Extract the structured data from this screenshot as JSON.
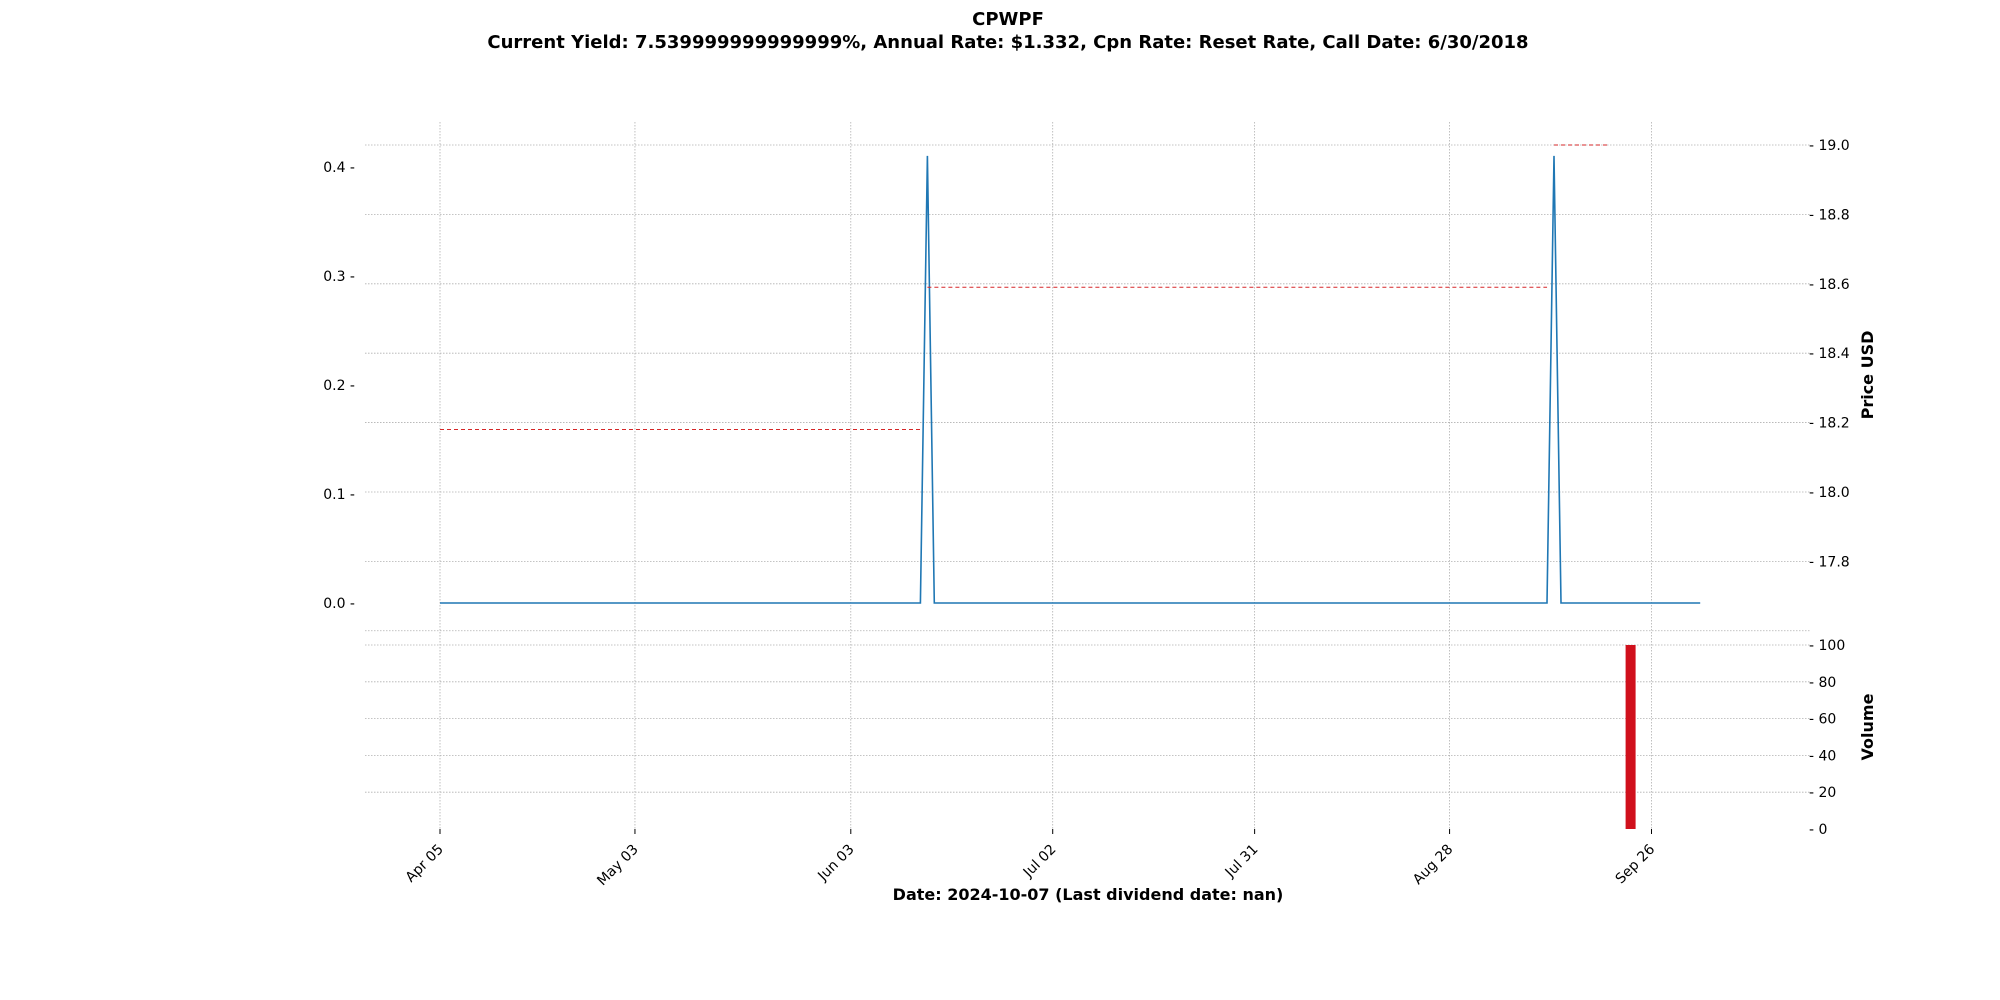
{
  "chart_data": {
    "type": "line",
    "title": "CPWPF",
    "subtitle": "Current Yield: 7.539999999999999%, Annual Rate: $1.332, Cpn Rate: Reset Rate, Call Date: 6/30/2018",
    "xlabel": "Date: 2024-10-07   (Last dividend date: nan)",
    "x_ticks": [
      "Apr 05",
      "May 03",
      "Jun 03",
      "Jul 02",
      "Jul 31",
      "Aug 28",
      "Sep 26"
    ],
    "xlim": [
      "2024-04-05",
      "2024-10-09"
    ],
    "grid": true,
    "left_axis": {
      "label": "",
      "ylim": [
        0,
        0.42
      ],
      "ticks": [
        "0.0",
        "0.1",
        "0.2",
        "0.3",
        "0.4"
      ]
    },
    "right_axis": {
      "label": "Price USD",
      "ylim": [
        17.68,
        19.0
      ],
      "ticks": [
        "17.8",
        "18.0",
        "18.2",
        "18.4",
        "18.6",
        "18.8",
        "19.0"
      ]
    },
    "volume_axis": {
      "label": "Volume",
      "ylim": [
        0,
        100
      ],
      "ticks": [
        "0",
        "20",
        "40",
        "60",
        "80",
        "100"
      ]
    },
    "series": [
      {
        "axis": "left",
        "color": "#1f77b4",
        "style": "solid",
        "points": [
          [
            "2024-04-05",
            0
          ],
          [
            "2024-06-13",
            0
          ],
          [
            "2024-06-14",
            0.41
          ],
          [
            "2024-06-15",
            0
          ],
          [
            "2024-09-11",
            0
          ],
          [
            "2024-09-12",
            0.41
          ],
          [
            "2024-09-13",
            0
          ],
          [
            "2024-10-03",
            0
          ]
        ]
      },
      {
        "axis": "right",
        "color": "#d62728",
        "style": "dashed",
        "segments": [
          {
            "x": [
              "2024-04-05",
              "2024-06-13"
            ],
            "y": 18.18
          },
          {
            "x": [
              "2024-06-14",
              "2024-09-11"
            ],
            "y": 18.59
          },
          {
            "x": [
              "2024-09-12",
              "2024-09-20"
            ],
            "y": 19.0
          }
        ]
      }
    ],
    "volume_bars": [
      {
        "date": "2024-09-23",
        "value": 100,
        "color": "#d0101c"
      }
    ]
  }
}
